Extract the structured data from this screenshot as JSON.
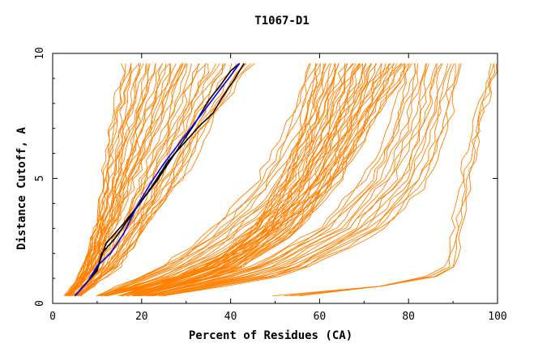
{
  "chart_data": {
    "type": "line",
    "title": "T1067-D1",
    "xlabel": "Percent of Residues (CA)",
    "ylabel": "Distance Cutoff, A",
    "xlim": [
      0,
      100
    ],
    "ylim": [
      0,
      10
    ],
    "x_ticks": [
      "0",
      "20",
      "40",
      "60",
      "80",
      "100"
    ],
    "y_ticks": [
      "0",
      "5",
      "10"
    ],
    "grid": false,
    "legend": "none",
    "colors": {
      "models": "#ff8000",
      "highlight_1": "#000000",
      "highlight_2": "#000000",
      "highlight_3": "#0000ff",
      "axes": "#000000"
    },
    "highlight_series": [
      {
        "color": "#000000",
        "points": [
          [
            5,
            0.3
          ],
          [
            8,
            0.9
          ],
          [
            10,
            1.3
          ],
          [
            11,
            2.0
          ],
          [
            14,
            2.6
          ],
          [
            18,
            3.6
          ],
          [
            22,
            4.6
          ],
          [
            26,
            5.7
          ],
          [
            28,
            6.1
          ],
          [
            30,
            6.5
          ],
          [
            33,
            7.1
          ],
          [
            36,
            7.6
          ],
          [
            38,
            8.2
          ],
          [
            41,
            9.0
          ],
          [
            43,
            9.6
          ]
        ]
      },
      {
        "color": "#000000",
        "points": [
          [
            5,
            0.3
          ],
          [
            8,
            0.9
          ],
          [
            10,
            1.4
          ],
          [
            12,
            2.4
          ],
          [
            16,
            3.2
          ],
          [
            20,
            4.1
          ],
          [
            23,
            4.8
          ],
          [
            26,
            5.6
          ],
          [
            29,
            6.4
          ],
          [
            32,
            7.2
          ],
          [
            35,
            8.1
          ],
          [
            38,
            8.8
          ],
          [
            40,
            9.3
          ],
          [
            42,
            9.6
          ]
        ]
      },
      {
        "color": "#0000ff",
        "points": [
          [
            5,
            0.3
          ],
          [
            8,
            0.9
          ],
          [
            10,
            1.5
          ],
          [
            13,
            2.0
          ],
          [
            16,
            2.8
          ],
          [
            19,
            3.9
          ],
          [
            22,
            4.8
          ],
          [
            25,
            5.6
          ],
          [
            28,
            6.3
          ],
          [
            31,
            7.0
          ],
          [
            34,
            7.7
          ],
          [
            37,
            8.4
          ],
          [
            40,
            9.1
          ],
          [
            42,
            9.6
          ]
        ]
      }
    ],
    "model_families": [
      {
        "count": 26,
        "low": [
          [
            3,
            0.3
          ],
          [
            6,
            1.0
          ],
          [
            9,
            2.5
          ],
          [
            11,
            4.5
          ],
          [
            13,
            7.0
          ],
          [
            16,
            9.6
          ]
        ],
        "high": [
          [
            4,
            0.3
          ],
          [
            10,
            1.5
          ],
          [
            15,
            3.5
          ],
          [
            20,
            5.5
          ],
          [
            25,
            7.5
          ],
          [
            30,
            9.6
          ]
        ]
      },
      {
        "count": 20,
        "low": [
          [
            5,
            0.3
          ],
          [
            10,
            1.5
          ],
          [
            15,
            3.0
          ],
          [
            20,
            5.0
          ],
          [
            25,
            7.0
          ],
          [
            30,
            9.6
          ]
        ],
        "high": [
          [
            6,
            0.3
          ],
          [
            15,
            1.5
          ],
          [
            22,
            3.2
          ],
          [
            30,
            5.2
          ],
          [
            36,
            7.4
          ],
          [
            45,
            9.6
          ]
        ]
      },
      {
        "count": 20,
        "low": [
          [
            10,
            0.3
          ],
          [
            25,
            1.5
          ],
          [
            35,
            2.8
          ],
          [
            45,
            4.6
          ],
          [
            52,
            6.8
          ],
          [
            58,
            9.6
          ]
        ],
        "high": [
          [
            12,
            0.3
          ],
          [
            30,
            1.0
          ],
          [
            45,
            2.2
          ],
          [
            60,
            4.2
          ],
          [
            70,
            6.8
          ],
          [
            80,
            9.6
          ]
        ]
      },
      {
        "count": 30,
        "low": [
          [
            15,
            0.3
          ],
          [
            35,
            1.5
          ],
          [
            45,
            3.0
          ],
          [
            52,
            5.0
          ],
          [
            56,
            7.0
          ],
          [
            58,
            9.6
          ]
        ],
        "high": [
          [
            20,
            0.3
          ],
          [
            40,
            1.2
          ],
          [
            55,
            2.8
          ],
          [
            65,
            5.0
          ],
          [
            72,
            7.2
          ],
          [
            80,
            9.6
          ]
        ]
      },
      {
        "count": 18,
        "low": [
          [
            20,
            0.3
          ],
          [
            45,
            1.5
          ],
          [
            60,
            3.0
          ],
          [
            70,
            5.0
          ],
          [
            76,
            7.0
          ],
          [
            80,
            9.6
          ]
        ],
        "high": [
          [
            25,
            0.3
          ],
          [
            55,
            1.2
          ],
          [
            75,
            3.0
          ],
          [
            85,
            5.0
          ],
          [
            89,
            7.2
          ],
          [
            92,
            9.6
          ]
        ]
      },
      {
        "count": 4,
        "low": [
          [
            50,
            0.3
          ],
          [
            80,
            0.8
          ],
          [
            88,
            1.5
          ],
          [
            90,
            3.0
          ],
          [
            93,
            6.0
          ],
          [
            99,
            9.6
          ]
        ],
        "high": [
          [
            55,
            0.3
          ],
          [
            84,
            0.9
          ],
          [
            91,
            1.5
          ],
          [
            93,
            4.0
          ],
          [
            96,
            7.0
          ],
          [
            100,
            9.6
          ]
        ]
      }
    ]
  }
}
